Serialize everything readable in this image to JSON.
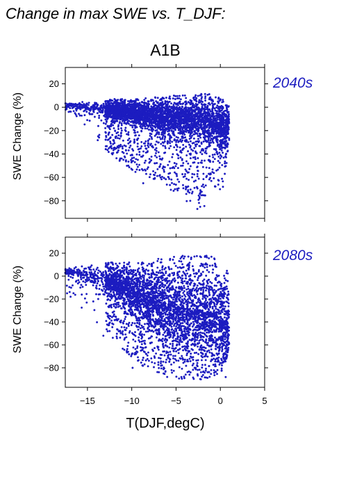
{
  "figure": {
    "title": "Change in max SWE vs. T_DJF:",
    "scenario": "A1B",
    "xlabel": "T(DJF,degC)",
    "point_color": "#1c1cc0"
  },
  "chart_data": [
    {
      "type": "scatter",
      "period_label": "2040s",
      "ylabel": "SWE Change (%)",
      "xlim": [
        -17.5,
        5
      ],
      "ylim": [
        -95,
        34
      ],
      "xticks": [
        -15,
        -10,
        -5,
        0,
        5
      ],
      "yticks": [
        20,
        0,
        -20,
        -40,
        -60,
        -80
      ],
      "x_tick_labels_shown": false,
      "grid": false,
      "n_points_approx": 4000,
      "envelope": {
        "x": [
          -17.5,
          -16,
          -14,
          -12,
          -10,
          -8,
          -6,
          -4,
          -2,
          -1,
          0,
          0.5,
          1
        ],
        "upper": [
          4,
          5,
          6,
          7,
          7,
          8,
          10,
          11,
          12,
          11,
          8,
          5,
          2
        ],
        "lower": [
          -5,
          -10,
          -30,
          -42,
          -55,
          -60,
          -70,
          -80,
          -88,
          -75,
          -70,
          -60,
          -30
        ],
        "density_center": [
          2,
          1,
          0,
          -2,
          -4,
          -6,
          -8,
          -8,
          -10,
          -12,
          -14,
          -18,
          -10
        ]
      },
      "series": [
        {
          "points": [
            [
              -17.0,
              3
            ],
            [
              -12.7,
              -28
            ],
            [
              -8.7,
              -65
            ],
            [
              -3.4,
              -80
            ],
            [
              -2.6,
              -87
            ],
            [
              0.3,
              -68
            ],
            [
              0.5,
              -48
            ],
            [
              -6.5,
              -30
            ]
          ]
        }
      ]
    },
    {
      "type": "scatter",
      "period_label": "2080s",
      "ylabel": "SWE Change (%)",
      "xlim": [
        -17.5,
        5
      ],
      "ylim": [
        -97,
        34
      ],
      "xticks": [
        -15,
        -10,
        -5,
        0,
        5
      ],
      "yticks": [
        20,
        0,
        -20,
        -40,
        -60,
        -80
      ],
      "x_tick_labels_shown": true,
      "x_tick_labels": [
        "−15",
        "−10",
        "−5",
        "0",
        "5"
      ],
      "grid": false,
      "n_points_approx": 4000,
      "envelope": {
        "x": [
          -17.5,
          -16,
          -14,
          -12,
          -10,
          -8,
          -6,
          -4,
          -2,
          -1,
          0,
          0.5,
          1
        ],
        "upper": [
          8,
          9,
          11,
          12,
          12,
          12,
          16,
          18,
          18,
          18,
          12,
          8,
          2
        ],
        "lower": [
          -15,
          -25,
          -40,
          -55,
          -72,
          -82,
          -88,
          -90,
          -90,
          -88,
          -85,
          -80,
          -60
        ],
        "density_center": [
          5,
          3,
          0,
          -5,
          -12,
          -18,
          -25,
          -28,
          -30,
          -32,
          -35,
          -40,
          -45
        ]
      },
      "series": [
        {
          "points": [
            [
              -17.3,
              -15
            ],
            [
              -13.2,
              -52
            ],
            [
              -9.9,
              -80
            ],
            [
              -4.4,
              -88
            ],
            [
              -2.2,
              -90
            ],
            [
              0.6,
              -88
            ],
            [
              0.8,
              -60
            ],
            [
              -7.0,
              15
            ]
          ]
        }
      ]
    }
  ]
}
